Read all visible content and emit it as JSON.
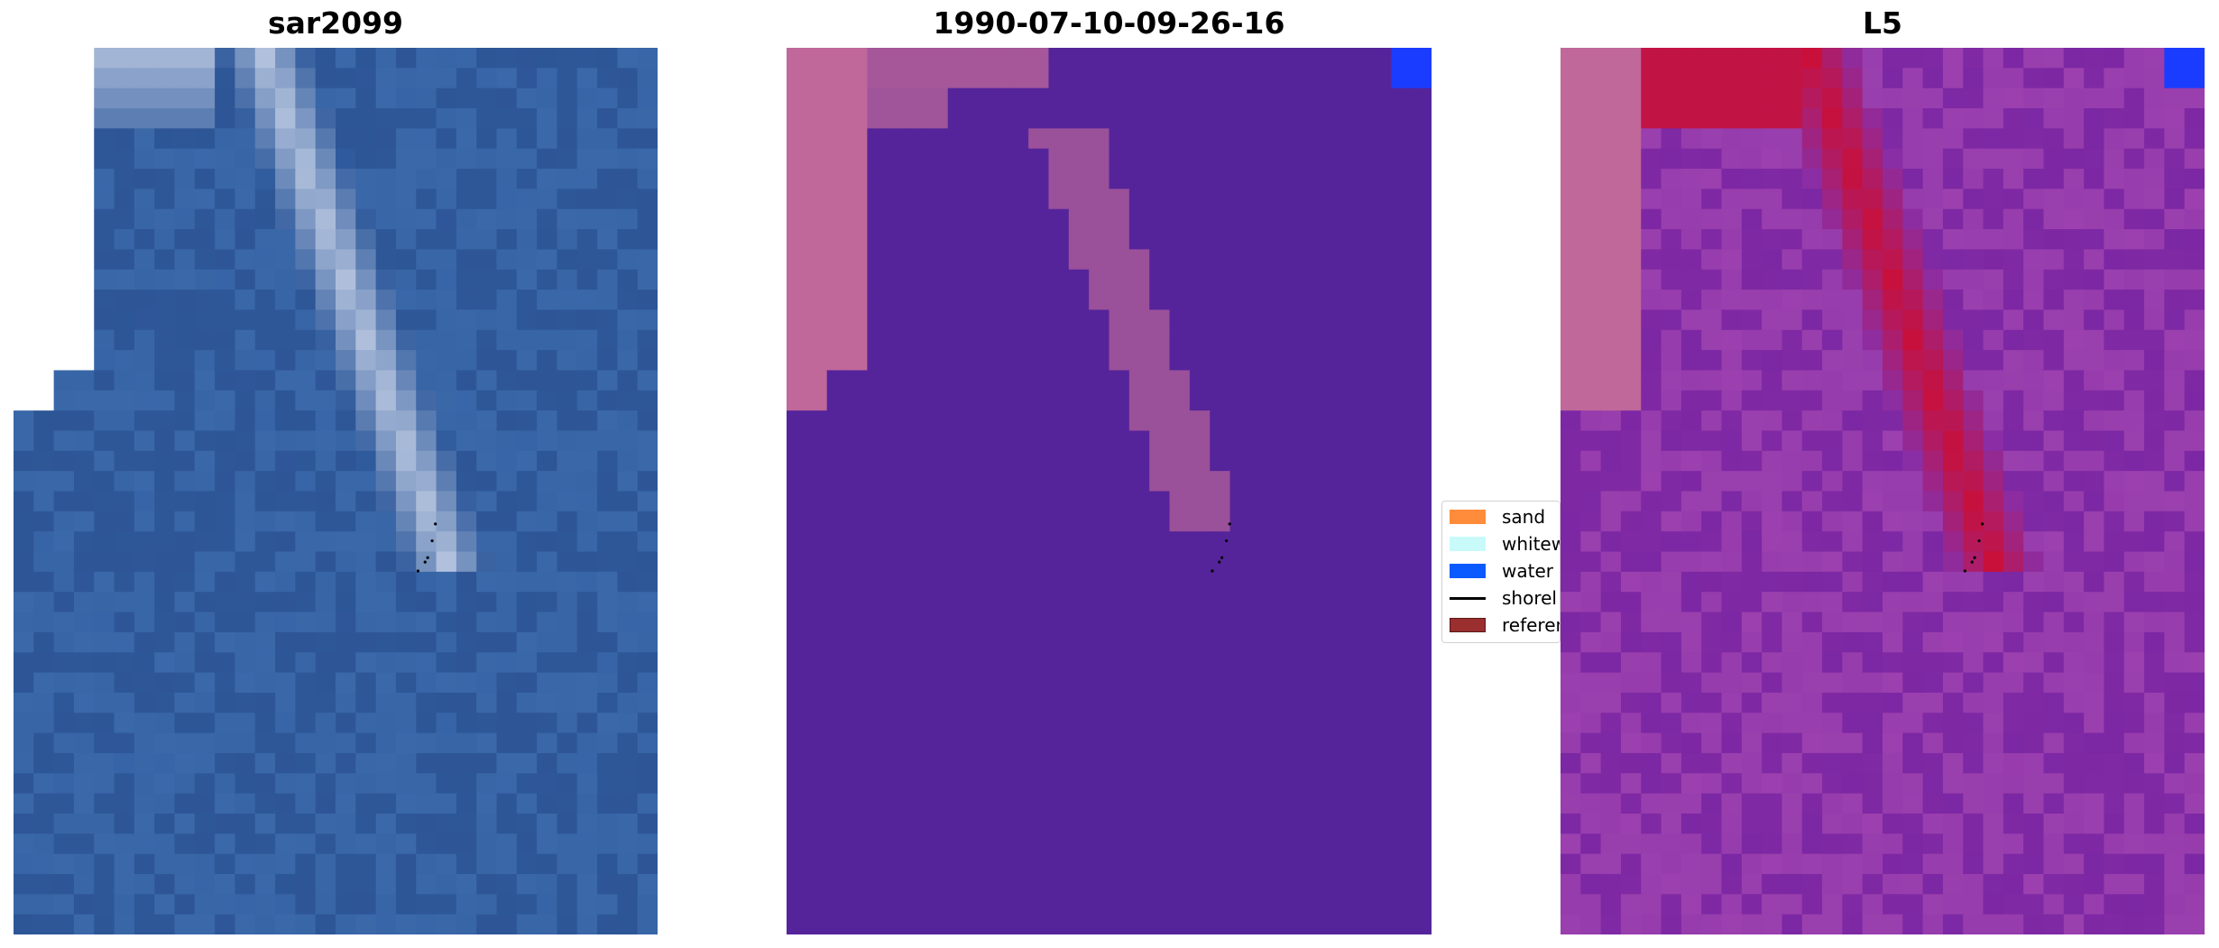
{
  "panels": [
    {
      "title": "sar2099"
    },
    {
      "title": "1990-07-10-09-26-16"
    },
    {
      "title": "L5"
    }
  ],
  "legend": {
    "items": [
      {
        "label": "sand",
        "color": "#ff8c3a",
        "kind": "patch"
      },
      {
        "label": "whitew",
        "color": "#c8fafa",
        "kind": "patch"
      },
      {
        "label": "water",
        "color": "#0a5aff",
        "kind": "patch"
      },
      {
        "label": "shorel",
        "color": "#000000",
        "kind": "line"
      },
      {
        "label": "referen",
        "color": "#9b2e2e",
        "kind": "patch"
      }
    ]
  },
  "colors": {
    "rgb_water": "#2f5a9c",
    "rgb_foam": "#c8d3e8",
    "class_water": "#55249a",
    "class_whitewater": "#c0689a",
    "class_blue": "#1a3cff",
    "prob_base": "#8a2ea6",
    "prob_high": "#c8103a"
  }
}
